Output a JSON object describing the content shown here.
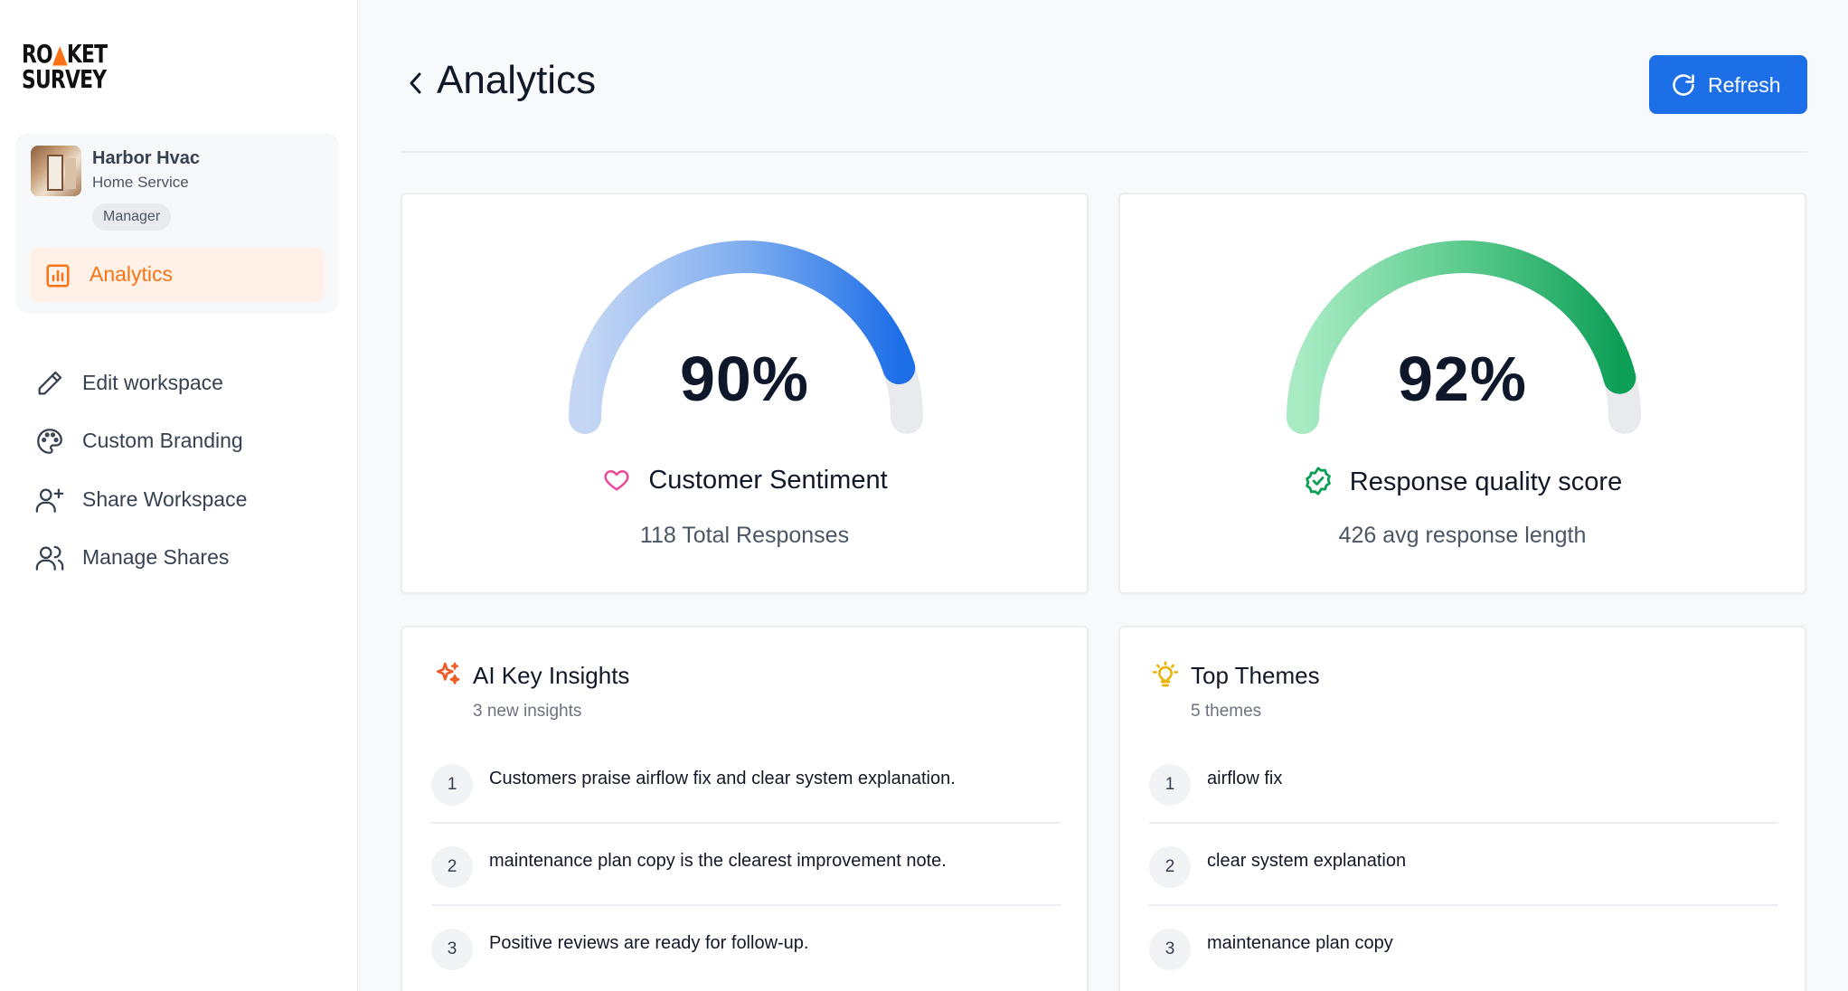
{
  "brand": {
    "line1_a": "RO",
    "line1_b": "▲",
    "line1_c": "KET",
    "line2": "SURVEY"
  },
  "workspace": {
    "name": "Harbor Hvac",
    "type": "Home Service",
    "role": "Manager"
  },
  "sidebar": {
    "active": {
      "label": "Analytics",
      "icon": "bar-chart-icon"
    },
    "items": [
      {
        "label": "Edit workspace",
        "icon": "pencil-icon"
      },
      {
        "label": "Custom Branding",
        "icon": "palette-icon"
      },
      {
        "label": "Share Workspace",
        "icon": "user-plus-icon"
      },
      {
        "label": "Manage Shares",
        "icon": "users-icon"
      }
    ]
  },
  "header": {
    "title": "Analytics",
    "refresh_label": "Refresh"
  },
  "colors": {
    "accent": "#1d6fe8",
    "orange": "#f97316",
    "green": "#0e9f57",
    "pink": "#ec4899"
  },
  "gauges": [
    {
      "value_text": "90%",
      "value": 0.9,
      "label": "Customer Sentiment",
      "sub": "118 Total Responses",
      "icon": "heart-icon"
    },
    {
      "value_text": "92%",
      "value": 0.92,
      "label": "Response quality score",
      "sub": "426 avg response length",
      "icon": "badge-check-icon"
    }
  ],
  "insights": {
    "title": "AI Key Insights",
    "subtitle": "3 new insights",
    "icon": "sparkles-icon",
    "items": [
      {
        "n": "1",
        "text": "Customers praise airflow fix and clear system explanation."
      },
      {
        "n": "2",
        "text": "maintenance plan copy is the clearest improvement note."
      },
      {
        "n": "3",
        "text": "Positive reviews are ready for follow-up."
      }
    ]
  },
  "themes": {
    "title": "Top Themes",
    "subtitle": "5 themes",
    "icon": "lightbulb-icon",
    "items": [
      {
        "n": "1",
        "text": "airflow fix"
      },
      {
        "n": "2",
        "text": "clear system explanation"
      },
      {
        "n": "3",
        "text": "maintenance plan copy"
      }
    ]
  }
}
